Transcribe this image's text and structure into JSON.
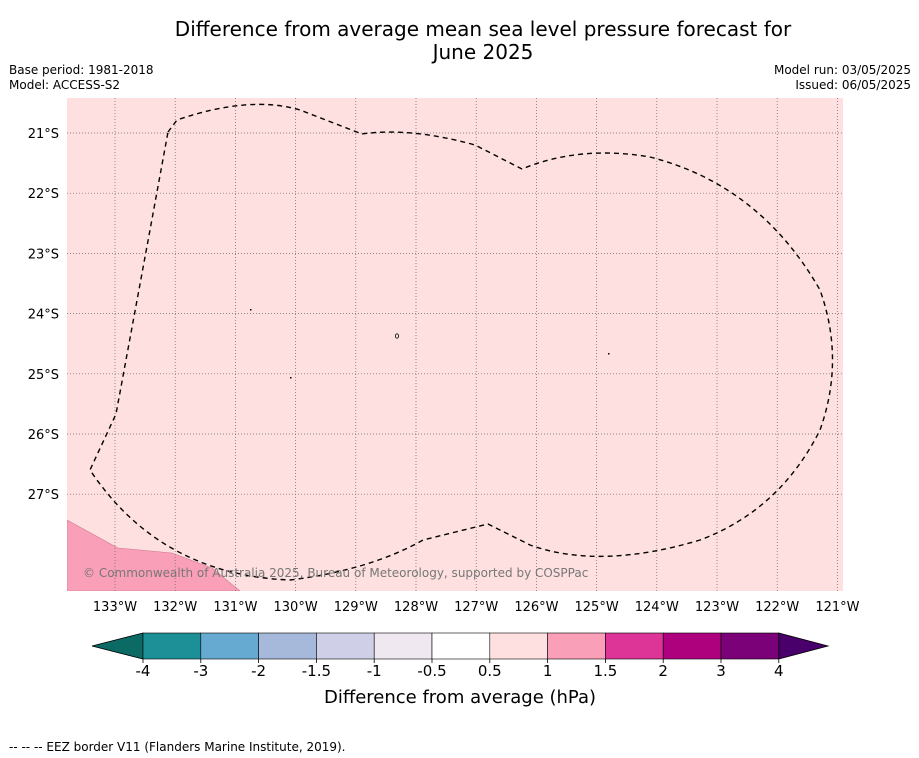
{
  "title_line1": "Difference from average mean sea level pressure forecast for",
  "title_line2": "June 2025",
  "base_period": "Base period: 1981-2018",
  "model": "Model: ACCESS-S2",
  "model_run": "Model run: 03/05/2025",
  "issued": "Issued: 06/05/2025",
  "copyright": "© Commonwealth of Australia 2025, Bureau of Meteorology, supported by COSPPac",
  "footnote": "--  --  -- EEZ border V11 (Flanders Marine Institute, 2019).",
  "map": {
    "lon_labels": [
      "133°W",
      "132°W",
      "131°W",
      "130°W",
      "129°W",
      "128°W",
      "127°W",
      "126°W",
      "125°W",
      "124°W",
      "123°W",
      "122°W",
      "121°W"
    ],
    "lat_labels": [
      "21°S",
      "22°S",
      "23°S",
      "24°S",
      "25°S",
      "26°S",
      "27°S"
    ],
    "background_color": "#fde0df",
    "anomaly_region_color": "#f99fb8"
  },
  "colorbar": {
    "label": "Difference from average (hPa)",
    "ticks": [
      "-4",
      "-3",
      "-2",
      "-1.5",
      "-1",
      "-0.5",
      "0.5",
      "1",
      "1.5",
      "2",
      "3",
      "4"
    ],
    "colors": [
      "#0b6b64",
      "#1c8f97",
      "#66aad2",
      "#a6b9da",
      "#cfd0e7",
      "#efe8f1",
      "#ffffff",
      "#fde0df",
      "#f99fb8",
      "#dd3497",
      "#ae017e",
      "#7a0177",
      "#49006a"
    ]
  }
}
